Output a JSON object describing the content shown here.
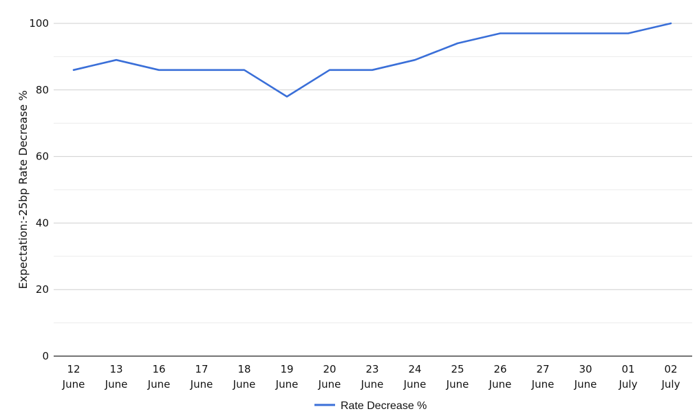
{
  "chart_data": {
    "type": "line",
    "title": "",
    "xlabel": "",
    "ylabel": "Expectation:-25bp Rate Decrease %",
    "ylim": [
      0,
      100
    ],
    "yticks": [
      "0",
      "20",
      "40",
      "60",
      "80",
      "100"
    ],
    "grid": true,
    "legend_position": "bottom",
    "categories": [
      [
        "12",
        "June"
      ],
      [
        "13",
        "June"
      ],
      [
        "16",
        "June"
      ],
      [
        "17",
        "June"
      ],
      [
        "18",
        "June"
      ],
      [
        "19",
        "June"
      ],
      [
        "20",
        "June"
      ],
      [
        "23",
        "June"
      ],
      [
        "24",
        "June"
      ],
      [
        "25",
        "June"
      ],
      [
        "26",
        "June"
      ],
      [
        "27",
        "June"
      ],
      [
        "30",
        "June"
      ],
      [
        "01",
        "July"
      ],
      [
        "02",
        "July"
      ]
    ],
    "series": [
      {
        "name": "Rate Decrease %",
        "color": "#3a6fd8",
        "values": [
          86,
          89,
          86,
          86,
          86,
          78,
          86,
          86,
          89,
          94,
          97,
          97,
          97,
          97,
          100
        ]
      }
    ]
  }
}
